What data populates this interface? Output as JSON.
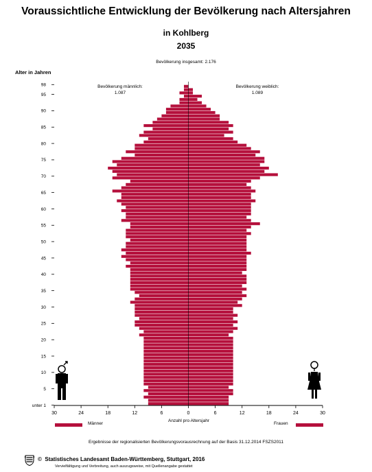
{
  "header": {
    "title": "Voraussichtliche Entwicklung der Bevölkerung nach Altersjahren",
    "subtitle": "in Kohlberg",
    "year": "2035",
    "total": "Bevölkerung insgesamt: 2.176"
  },
  "totals": {
    "male_label": "Bevölkerung männlich:",
    "male_value": "1.087",
    "female_label": "Bevölkerung weiblich:",
    "female_value": "1.089"
  },
  "legend": {
    "male": "Männer",
    "female": "Frauen"
  },
  "footer": {
    "basis": "Ergebnisse der regionalisierten Bevölkerungsvorausrechnung auf der Basis  31.12.2014 FSZS2011",
    "copyright_symbol": "©",
    "copyright": "Statistisches Landesamt Baden-Württemberg,  Stuttgart,  2016",
    "note": "Vervielfältigung und Verbreitung, auch auszugsweise, mit Quellenangabe gestattet"
  },
  "colors": {
    "bar": "#b5103c"
  },
  "chart_data": {
    "type": "bar",
    "orientation": "horizontal",
    "ylabel": "Alter in Jahren",
    "xlabel": "Anzahl pro Altersjahr",
    "xlim": [
      -30,
      30
    ],
    "x_ticks": [
      -30,
      -24,
      -18,
      -12,
      -6,
      0,
      6,
      12,
      18,
      24,
      30
    ],
    "x_tick_labels": [
      "30",
      "24",
      "18",
      "12",
      "6",
      "0",
      "6",
      "12",
      "18",
      "24",
      "30"
    ],
    "y_ticks": [
      0,
      5,
      10,
      15,
      20,
      25,
      30,
      35,
      40,
      45,
      50,
      55,
      60,
      65,
      70,
      75,
      80,
      85,
      90,
      95,
      98
    ],
    "y_tick_labels": [
      "unter 1",
      "5",
      "10",
      "15",
      "20",
      "25",
      "30",
      "35",
      "40",
      "45",
      "50",
      "55",
      "60",
      "65",
      "70",
      "75",
      "80",
      "85",
      "90",
      "95",
      "98"
    ],
    "ages": [
      0,
      1,
      2,
      3,
      4,
      5,
      6,
      7,
      8,
      9,
      10,
      11,
      12,
      13,
      14,
      15,
      16,
      17,
      18,
      19,
      20,
      21,
      22,
      23,
      24,
      25,
      26,
      27,
      28,
      29,
      30,
      31,
      32,
      33,
      34,
      35,
      36,
      37,
      38,
      39,
      40,
      41,
      42,
      43,
      44,
      45,
      46,
      47,
      48,
      49,
      50,
      51,
      52,
      53,
      54,
      55,
      56,
      57,
      58,
      59,
      60,
      61,
      62,
      63,
      64,
      65,
      66,
      67,
      68,
      69,
      70,
      71,
      72,
      73,
      74,
      75,
      76,
      77,
      78,
      79,
      80,
      81,
      82,
      83,
      84,
      85,
      86,
      87,
      88,
      89,
      90,
      91,
      92,
      93,
      94,
      95,
      96,
      97,
      98
    ],
    "series": [
      {
        "name": "Männer",
        "values": [
          9,
          9,
          10,
          9,
          10,
          9,
          10,
          10,
          10,
          10,
          10,
          10,
          10,
          10,
          10,
          10,
          10,
          10,
          10,
          10,
          10,
          11,
          10,
          11,
          12,
          12,
          11,
          12,
          12,
          12,
          12,
          13,
          12,
          11,
          12,
          13,
          13,
          13,
          13,
          13,
          13,
          13,
          14,
          13,
          14,
          15,
          14,
          15,
          14,
          14,
          13,
          14,
          14,
          14,
          13,
          13,
          15,
          14,
          14,
          15,
          14,
          15,
          16,
          15,
          15,
          17,
          15,
          14,
          13,
          17,
          16,
          17,
          18,
          16,
          17,
          15,
          12,
          14,
          12,
          12,
          10,
          9,
          11,
          10,
          8,
          10,
          8,
          7,
          6,
          5,
          5,
          4,
          2,
          2,
          1,
          2,
          1,
          1,
          0
        ]
      },
      {
        "name": "Frauen",
        "values": [
          9,
          9,
          9,
          10,
          10,
          9,
          10,
          10,
          10,
          10,
          10,
          10,
          10,
          10,
          10,
          10,
          10,
          10,
          10,
          10,
          10,
          9,
          10,
          11,
          10,
          11,
          10,
          11,
          10,
          10,
          12,
          11,
          12,
          13,
          12,
          13,
          12,
          13,
          13,
          13,
          12,
          13,
          13,
          13,
          13,
          13,
          14,
          13,
          13,
          13,
          13,
          13,
          14,
          13,
          14,
          16,
          14,
          13,
          14,
          14,
          14,
          14,
          15,
          14,
          14,
          15,
          14,
          13,
          14,
          16,
          20,
          17,
          18,
          16,
          17,
          17,
          15,
          16,
          14,
          13,
          11,
          10,
          8,
          10,
          9,
          10,
          9,
          7,
          7,
          6,
          5,
          4,
          3,
          2,
          3,
          1,
          1,
          0,
          0
        ]
      }
    ]
  }
}
